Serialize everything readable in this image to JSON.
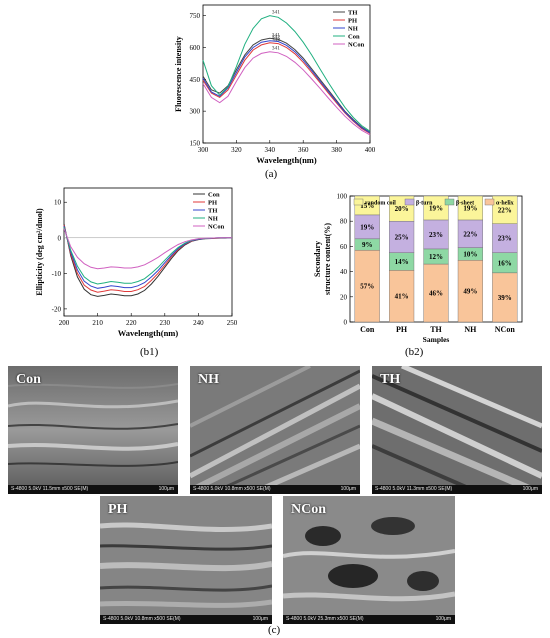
{
  "panel_labels": {
    "a": "(a)",
    "b1": "(b1)",
    "b2": "(b2)",
    "c": "(c)"
  },
  "sem": [
    {
      "label": "Con",
      "info": "S-4800 5.0kV 11.5mm x500 SE(M)",
      "scale": "100μm"
    },
    {
      "label": "NH",
      "info": "S-4800 5.0kV 10.8mm x500 SE(M)",
      "scale": "100μm"
    },
    {
      "label": "TH",
      "info": "S-4800 5.0kV 11.3mm x500 SE(M)",
      "scale": "100μm"
    },
    {
      "label": "PH",
      "info": "S-4800 5.0kV 10.8mm x500 SE(M)",
      "scale": "100μm"
    },
    {
      "label": "NCon",
      "info": "S-4800 5.0kV 25.3mm x500 SE(M)",
      "scale": "100μm"
    }
  ],
  "chart_data": [
    {
      "id": "a",
      "type": "line",
      "xlabel": "Wavelength(nm)",
      "ylabel": "Fluorescence intensity",
      "xlim": [
        300,
        400
      ],
      "ylim": [
        150,
        800
      ],
      "xticks": [
        300,
        320,
        340,
        360,
        380,
        400
      ],
      "yticks": [
        150,
        300,
        450,
        600,
        750
      ],
      "legend_position": "top-right",
      "x": [
        300,
        305,
        310,
        315,
        320,
        325,
        330,
        335,
        340,
        345,
        350,
        355,
        360,
        365,
        370,
        375,
        380,
        385,
        390,
        395,
        400
      ],
      "series": [
        {
          "name": "TH",
          "color": "#444444",
          "peak_label": "341",
          "values": [
            465,
            400,
            385,
            420,
            495,
            565,
            612,
            635,
            643,
            638,
            620,
            590,
            550,
            500,
            450,
            400,
            350,
            300,
            260,
            225,
            200
          ]
        },
        {
          "name": "PH",
          "color": "#e03a3a",
          "peak_label": "342",
          "values": [
            445,
            385,
            365,
            400,
            470,
            540,
            588,
            612,
            622,
            618,
            600,
            570,
            530,
            483,
            435,
            385,
            338,
            292,
            252,
            218,
            195
          ]
        },
        {
          "name": "NH",
          "color": "#3344cc",
          "peak_label": "342",
          "values": [
            455,
            390,
            370,
            410,
            482,
            555,
            600,
            625,
            632,
            628,
            610,
            580,
            540,
            492,
            442,
            392,
            344,
            296,
            256,
            222,
            198
          ]
        },
        {
          "name": "Con",
          "color": "#20b080",
          "peak_label": "341",
          "values": [
            540,
            420,
            375,
            415,
            510,
            615,
            690,
            735,
            750,
            742,
            715,
            675,
            625,
            565,
            500,
            435,
            375,
            318,
            270,
            232,
            205
          ]
        },
        {
          "name": "NCon",
          "color": "#d060c0",
          "peak_label": "341",
          "values": [
            430,
            365,
            340,
            370,
            440,
            505,
            550,
            572,
            580,
            575,
            558,
            530,
            495,
            452,
            408,
            362,
            318,
            276,
            240,
            210,
            188
          ]
        }
      ]
    },
    {
      "id": "b1",
      "type": "line",
      "xlabel": "Wavelength(nm)",
      "ylabel": "Ellipticity (deg cm²/dmol)",
      "xlim": [
        200,
        250
      ],
      "ylim": [
        -22,
        14
      ],
      "xticks": [
        200,
        210,
        220,
        230,
        240,
        250
      ],
      "yticks": [
        -20,
        -10,
        0,
        10
      ],
      "legend_position": "top-right",
      "x": [
        200,
        202,
        204,
        206,
        208,
        210,
        212,
        214,
        216,
        218,
        220,
        222,
        224,
        226,
        228,
        230,
        232,
        234,
        236,
        238,
        240,
        242,
        244,
        246,
        248,
        250
      ],
      "series": [
        {
          "name": "Con",
          "color": "#333333",
          "values": [
            4,
            -5,
            -11,
            -14.5,
            -16,
            -16.5,
            -16.2,
            -15.8,
            -16,
            -16.3,
            -16.3,
            -15.8,
            -14.8,
            -13,
            -10.8,
            -8.3,
            -5.8,
            -3.6,
            -2,
            -1,
            -0.5,
            -0.3,
            -0.2,
            -0.1,
            -0.1,
            0
          ]
        },
        {
          "name": "PH",
          "color": "#e03a3a",
          "values": [
            3.6,
            -4.5,
            -10,
            -13.3,
            -14.7,
            -15.3,
            -15,
            -14.6,
            -14.8,
            -15.1,
            -15.1,
            -14.6,
            -13.7,
            -12,
            -10,
            -7.7,
            -5.3,
            -3.3,
            -1.8,
            -0.9,
            -0.4,
            -0.2,
            -0.1,
            -0.1,
            0,
            0
          ]
        },
        {
          "name": "TH",
          "color": "#3344cc",
          "values": [
            3.3,
            -4,
            -9,
            -12.2,
            -13.6,
            -14.2,
            -13.9,
            -13.5,
            -13.7,
            -14,
            -14,
            -13.5,
            -12.6,
            -11,
            -9.2,
            -7,
            -4.9,
            -3,
            -1.7,
            -0.8,
            -0.4,
            -0.2,
            -0.1,
            0,
            0,
            0
          ]
        },
        {
          "name": "NH",
          "color": "#20b080",
          "values": [
            3,
            -3.5,
            -8,
            -11,
            -12.4,
            -13,
            -12.7,
            -12.3,
            -12.5,
            -12.8,
            -12.8,
            -12.3,
            -11.5,
            -10,
            -8.3,
            -6.3,
            -4.4,
            -2.7,
            -1.5,
            -0.7,
            -0.3,
            -0.2,
            -0.1,
            0,
            0,
            0
          ]
        },
        {
          "name": "NCon",
          "color": "#d060c0",
          "values": [
            2.6,
            -2.5,
            -5.5,
            -7.3,
            -8.3,
            -8.7,
            -8.5,
            -8.2,
            -8.3,
            -8.5,
            -8.5,
            -8.2,
            -7.6,
            -6.6,
            -5.5,
            -4.2,
            -3,
            -1.9,
            -1.1,
            -0.6,
            -0.3,
            -0.1,
            -0.1,
            0,
            0,
            0
          ]
        }
      ]
    },
    {
      "id": "b2",
      "type": "bar",
      "stacked": true,
      "xlabel": "Samples",
      "ylabel": "Secondary structure content(%)",
      "ylim": [
        0,
        100
      ],
      "yticks": [
        0,
        20,
        40,
        60,
        80,
        100
      ],
      "legend_position": "top",
      "categories": [
        "Con",
        "PH",
        "TH",
        "NH",
        "NCon"
      ],
      "series": [
        {
          "name": "α-helix",
          "color": "#f9c59a",
          "values": [
            57,
            41,
            46,
            49,
            39
          ]
        },
        {
          "name": "β-sheet",
          "color": "#8ed8a4",
          "values": [
            9,
            14,
            12,
            10,
            16
          ]
        },
        {
          "name": "β-turn",
          "color": "#c4b0e0",
          "values": [
            19,
            25,
            23,
            22,
            23
          ]
        },
        {
          "name": "random coil",
          "color": "#fbf59a",
          "values": [
            15,
            20,
            19,
            19,
            22
          ]
        }
      ],
      "legend_order": [
        "random coil",
        "β-turn",
        "β-sheet",
        "α-helix"
      ]
    }
  ]
}
